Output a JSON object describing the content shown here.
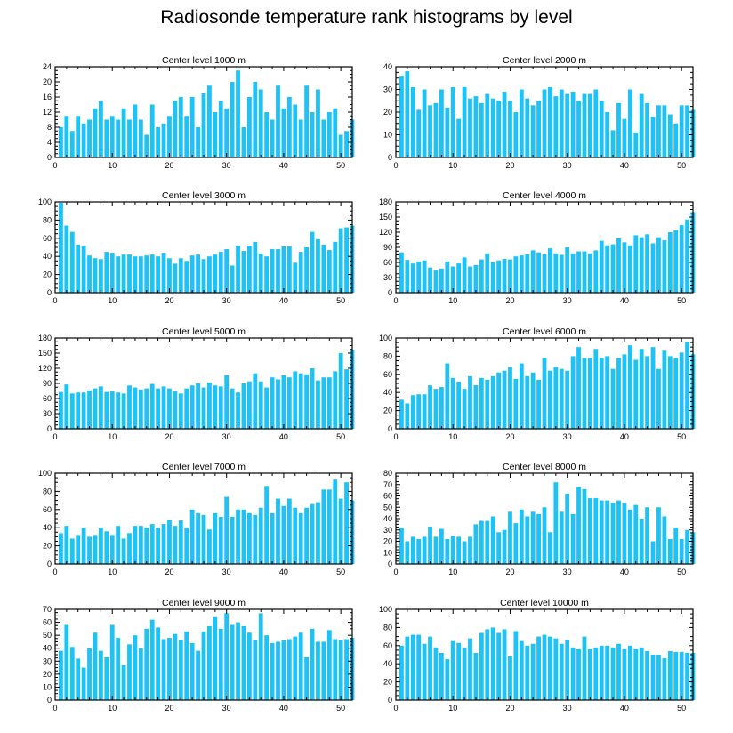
{
  "title": "Radiosonde temperature rank histograms by level",
  "chart_data": [
    {
      "type": "bar",
      "title": "Center level 1000 m",
      "x": [
        1,
        2,
        3,
        4,
        5,
        6,
        7,
        8,
        9,
        10,
        11,
        12,
        13,
        14,
        15,
        16,
        17,
        18,
        19,
        20,
        21,
        22,
        23,
        24,
        25,
        26,
        27,
        28,
        29,
        30,
        31,
        32,
        33,
        34,
        35,
        36,
        37,
        38,
        39,
        40,
        41,
        42,
        43,
        44,
        45,
        46,
        47,
        48,
        49,
        50,
        51,
        52
      ],
      "values": [
        8,
        11,
        7,
        11,
        9,
        10,
        13,
        15,
        10,
        11,
        10,
        13,
        10,
        14,
        10,
        6,
        14,
        8,
        9,
        11,
        15,
        16,
        11,
        16,
        8,
        17,
        19,
        12,
        15,
        13,
        20,
        23,
        8,
        16,
        20,
        18,
        12,
        10,
        19,
        13,
        16,
        14,
        10,
        19,
        12,
        18,
        10,
        12,
        13,
        6,
        7,
        10
      ],
      "xlim": [
        0,
        52
      ],
      "ylim": [
        0,
        24
      ],
      "xticks": [
        0,
        10,
        20,
        30,
        40,
        50
      ],
      "yticks": [
        0,
        4,
        8,
        12,
        16,
        20,
        24
      ]
    },
    {
      "type": "bar",
      "title": "Center level 2000 m",
      "x": [
        1,
        2,
        3,
        4,
        5,
        6,
        7,
        8,
        9,
        10,
        11,
        12,
        13,
        14,
        15,
        16,
        17,
        18,
        19,
        20,
        21,
        22,
        23,
        24,
        25,
        26,
        27,
        28,
        29,
        30,
        31,
        32,
        33,
        34,
        35,
        36,
        37,
        38,
        39,
        40,
        41,
        42,
        43,
        44,
        45,
        46,
        47,
        48,
        49,
        50,
        51,
        52
      ],
      "values": [
        36,
        38,
        31,
        21,
        30,
        23,
        24,
        30,
        22,
        31,
        17,
        31,
        26,
        27,
        24,
        28,
        26,
        25,
        29,
        25,
        20,
        30,
        26,
        23,
        25,
        30,
        31,
        27,
        30,
        28,
        29,
        25,
        28,
        28,
        30,
        25,
        20,
        12,
        24,
        17,
        30,
        11,
        28,
        24,
        18,
        23,
        23,
        19,
        15,
        23,
        23,
        21
      ],
      "xlim": [
        0,
        52
      ],
      "ylim": [
        0,
        40
      ],
      "xticks": [
        0,
        10,
        20,
        30,
        40,
        50
      ],
      "yticks": [
        0,
        10,
        20,
        30,
        40
      ]
    },
    {
      "type": "bar",
      "title": "Center level 3000 m",
      "x": [
        1,
        2,
        3,
        4,
        5,
        6,
        7,
        8,
        9,
        10,
        11,
        12,
        13,
        14,
        15,
        16,
        17,
        18,
        19,
        20,
        21,
        22,
        23,
        24,
        25,
        26,
        27,
        28,
        29,
        30,
        31,
        32,
        33,
        34,
        35,
        36,
        37,
        38,
        39,
        40,
        41,
        42,
        43,
        44,
        45,
        46,
        47,
        48,
        49,
        50,
        51,
        52
      ],
      "values": [
        99,
        74,
        67,
        53,
        52,
        41,
        38,
        37,
        45,
        44,
        40,
        42,
        42,
        40,
        40,
        41,
        42,
        40,
        44,
        38,
        32,
        38,
        35,
        41,
        42,
        37,
        40,
        42,
        45,
        48,
        30,
        52,
        46,
        52,
        56,
        43,
        40,
        48,
        48,
        51,
        51,
        33,
        45,
        50,
        67,
        59,
        53,
        47,
        56,
        71,
        72,
        74
      ],
      "xlim": [
        0,
        52
      ],
      "ylim": [
        0,
        100
      ],
      "xticks": [
        0,
        10,
        20,
        30,
        40,
        50
      ],
      "yticks": [
        0,
        20,
        40,
        60,
        80,
        100
      ]
    },
    {
      "type": "bar",
      "title": "Center level 4000 m",
      "x": [
        1,
        2,
        3,
        4,
        5,
        6,
        7,
        8,
        9,
        10,
        11,
        12,
        13,
        14,
        15,
        16,
        17,
        18,
        19,
        20,
        21,
        22,
        23,
        24,
        25,
        26,
        27,
        28,
        29,
        30,
        31,
        32,
        33,
        34,
        35,
        36,
        37,
        38,
        39,
        40,
        41,
        42,
        43,
        44,
        45,
        46,
        47,
        48,
        49,
        50,
        51,
        52
      ],
      "values": [
        80,
        65,
        58,
        62,
        64,
        50,
        44,
        48,
        62,
        52,
        58,
        70,
        52,
        55,
        66,
        78,
        60,
        64,
        67,
        66,
        72,
        74,
        76,
        84,
        80,
        76,
        88,
        78,
        75,
        90,
        78,
        82,
        82,
        78,
        84,
        103,
        94,
        96,
        108,
        100,
        94,
        114,
        110,
        116,
        98,
        110,
        104,
        120,
        124,
        134,
        145,
        160
      ],
      "xlim": [
        0,
        52
      ],
      "ylim": [
        0,
        180
      ],
      "xticks": [
        0,
        10,
        20,
        30,
        40,
        50
      ],
      "yticks": [
        0,
        30,
        60,
        90,
        120,
        150,
        180
      ]
    },
    {
      "type": "bar",
      "title": "Center level 5000 m",
      "x": [
        1,
        2,
        3,
        4,
        5,
        6,
        7,
        8,
        9,
        10,
        11,
        12,
        13,
        14,
        15,
        16,
        17,
        18,
        19,
        20,
        21,
        22,
        23,
        24,
        25,
        26,
        27,
        28,
        29,
        30,
        31,
        32,
        33,
        34,
        35,
        36,
        37,
        38,
        39,
        40,
        41,
        42,
        43,
        44,
        45,
        46,
        47,
        48,
        49,
        50,
        51,
        52
      ],
      "values": [
        73,
        88,
        70,
        72,
        72,
        76,
        80,
        84,
        73,
        74,
        72,
        70,
        86,
        82,
        78,
        80,
        89,
        80,
        84,
        80,
        74,
        70,
        80,
        86,
        90,
        82,
        92,
        86,
        84,
        106,
        80,
        72,
        90,
        94,
        110,
        94,
        82,
        102,
        98,
        106,
        102,
        114,
        110,
        108,
        120,
        96,
        102,
        102,
        114,
        150,
        118,
        156
      ],
      "xlim": [
        0,
        52
      ],
      "ylim": [
        0,
        180
      ],
      "xticks": [
        0,
        10,
        20,
        30,
        40,
        50
      ],
      "yticks": [
        0,
        30,
        60,
        90,
        120,
        150,
        180
      ]
    },
    {
      "type": "bar",
      "title": "Center level 6000 m",
      "x": [
        1,
        2,
        3,
        4,
        5,
        6,
        7,
        8,
        9,
        10,
        11,
        12,
        13,
        14,
        15,
        16,
        17,
        18,
        19,
        20,
        21,
        22,
        23,
        24,
        25,
        26,
        27,
        28,
        29,
        30,
        31,
        32,
        33,
        34,
        35,
        36,
        37,
        38,
        39,
        40,
        41,
        42,
        43,
        44,
        45,
        46,
        47,
        48,
        49,
        50,
        51,
        52
      ],
      "values": [
        32,
        28,
        37,
        38,
        38,
        48,
        44,
        46,
        72,
        56,
        52,
        44,
        58,
        48,
        56,
        54,
        58,
        62,
        64,
        68,
        55,
        72,
        58,
        62,
        54,
        78,
        64,
        68,
        66,
        64,
        80,
        90,
        78,
        78,
        88,
        78,
        80,
        66,
        78,
        82,
        92,
        76,
        88,
        80,
        90,
        66,
        86,
        80,
        78,
        84,
        96,
        82
      ],
      "xlim": [
        0,
        52
      ],
      "ylim": [
        0,
        100
      ],
      "xticks": [
        0,
        10,
        20,
        30,
        40,
        50
      ],
      "yticks": [
        0,
        20,
        40,
        60,
        80,
        100
      ]
    },
    {
      "type": "bar",
      "title": "Center level 7000 m",
      "x": [
        1,
        2,
        3,
        4,
        5,
        6,
        7,
        8,
        9,
        10,
        11,
        12,
        13,
        14,
        15,
        16,
        17,
        18,
        19,
        20,
        21,
        22,
        23,
        24,
        25,
        26,
        27,
        28,
        29,
        30,
        31,
        32,
        33,
        34,
        35,
        36,
        37,
        38,
        39,
        40,
        41,
        42,
        43,
        44,
        45,
        46,
        47,
        48,
        49,
        50,
        51,
        52
      ],
      "values": [
        34,
        42,
        28,
        32,
        40,
        30,
        32,
        40,
        36,
        32,
        42,
        28,
        34,
        42,
        42,
        40,
        44,
        40,
        44,
        49,
        42,
        48,
        40,
        60,
        56,
        54,
        38,
        56,
        52,
        74,
        52,
        60,
        60,
        56,
        54,
        62,
        86,
        56,
        72,
        64,
        72,
        62,
        56,
        62,
        66,
        68,
        82,
        82,
        93,
        72,
        90,
        70
      ],
      "xlim": [
        0,
        52
      ],
      "ylim": [
        0,
        100
      ],
      "xticks": [
        0,
        10,
        20,
        30,
        40,
        50
      ],
      "yticks": [
        0,
        20,
        40,
        60,
        80,
        100
      ]
    },
    {
      "type": "bar",
      "title": "Center level 8000 m",
      "x": [
        1,
        2,
        3,
        4,
        5,
        6,
        7,
        8,
        9,
        10,
        11,
        12,
        13,
        14,
        15,
        16,
        17,
        18,
        19,
        20,
        21,
        22,
        23,
        24,
        25,
        26,
        27,
        28,
        29,
        30,
        31,
        32,
        33,
        34,
        35,
        36,
        37,
        38,
        39,
        40,
        41,
        42,
        43,
        44,
        45,
        46,
        47,
        48,
        49,
        50,
        51,
        52
      ],
      "values": [
        32,
        20,
        24,
        22,
        24,
        33,
        24,
        31,
        22,
        25,
        24,
        20,
        24,
        35,
        38,
        38,
        42,
        28,
        30,
        46,
        36,
        48,
        42,
        46,
        44,
        50,
        28,
        72,
        46,
        62,
        44,
        68,
        66,
        58,
        58,
        56,
        56,
        54,
        56,
        54,
        48,
        52,
        40,
        50,
        20,
        50,
        42,
        22,
        32,
        22,
        30,
        28
      ],
      "xlim": [
        0,
        52
      ],
      "ylim": [
        0,
        80
      ],
      "xticks": [
        0,
        10,
        20,
        30,
        40,
        50
      ],
      "yticks": [
        0,
        10,
        20,
        30,
        40,
        50,
        60,
        70,
        80
      ]
    },
    {
      "type": "bar",
      "title": "Center level 9000 m",
      "x": [
        1,
        2,
        3,
        4,
        5,
        6,
        7,
        8,
        9,
        10,
        11,
        12,
        13,
        14,
        15,
        16,
        17,
        18,
        19,
        20,
        21,
        22,
        23,
        24,
        25,
        26,
        27,
        28,
        29,
        30,
        31,
        32,
        33,
        34,
        35,
        36,
        37,
        38,
        39,
        40,
        41,
        42,
        43,
        44,
        45,
        46,
        47,
        48,
        49,
        50,
        51,
        52
      ],
      "values": [
        38,
        58,
        41,
        32,
        25,
        40,
        52,
        38,
        33,
        58,
        48,
        27,
        43,
        50,
        40,
        55,
        62,
        56,
        47,
        48,
        51,
        46,
        53,
        44,
        38,
        53,
        57,
        64,
        55,
        67,
        58,
        60,
        57,
        52,
        46,
        67,
        50,
        44,
        45,
        46,
        47,
        49,
        52,
        33,
        55,
        45,
        45,
        54,
        47,
        46,
        47,
        48
      ],
      "xlim": [
        0,
        52
      ],
      "ylim": [
        0,
        70
      ],
      "xticks": [
        0,
        10,
        20,
        30,
        40,
        50
      ],
      "yticks": [
        0,
        10,
        20,
        30,
        40,
        50,
        60,
        70
      ]
    },
    {
      "type": "bar",
      "title": "Center level 10000 m",
      "x": [
        1,
        2,
        3,
        4,
        5,
        6,
        7,
        8,
        9,
        10,
        11,
        12,
        13,
        14,
        15,
        16,
        17,
        18,
        19,
        20,
        21,
        22,
        23,
        24,
        25,
        26,
        27,
        28,
        29,
        30,
        31,
        32,
        33,
        34,
        35,
        36,
        37,
        38,
        39,
        40,
        41,
        42,
        43,
        44,
        45,
        46,
        47,
        48,
        49,
        50,
        51,
        52
      ],
      "values": [
        60,
        70,
        72,
        72,
        62,
        70,
        58,
        52,
        45,
        65,
        63,
        58,
        68,
        52,
        74,
        78,
        80,
        74,
        78,
        48,
        76,
        65,
        60,
        62,
        70,
        72,
        70,
        68,
        62,
        66,
        58,
        56,
        70,
        56,
        58,
        60,
        60,
        58,
        62,
        56,
        60,
        56,
        58,
        54,
        50,
        50,
        46,
        54,
        53,
        53,
        52,
        52
      ],
      "xlim": [
        0,
        52
      ],
      "ylim": [
        0,
        100
      ],
      "xticks": [
        0,
        10,
        20,
        30,
        40,
        50
      ],
      "yticks": [
        0,
        20,
        40,
        60,
        80,
        100
      ]
    }
  ]
}
